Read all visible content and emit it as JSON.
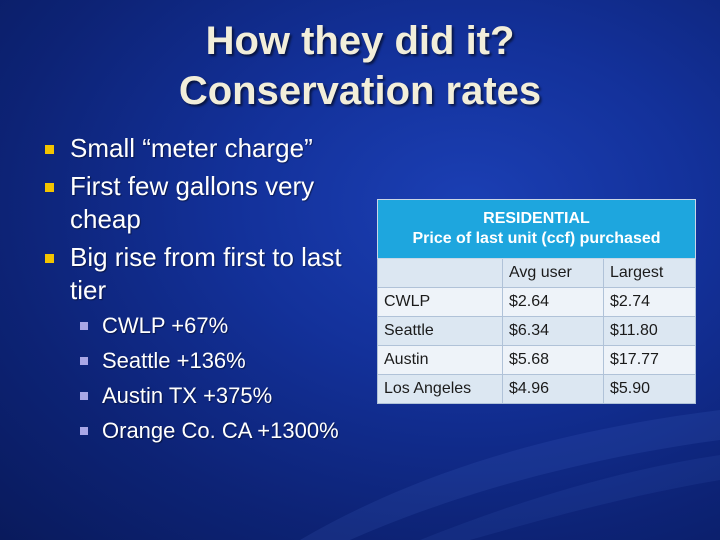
{
  "slide": {
    "title_line1": "How they did it?",
    "title_line2": "Conservation rates",
    "bullets": [
      {
        "text": "Small “meter charge”"
      },
      {
        "text": "First few gallons very cheap"
      },
      {
        "text": "Big rise from first to last tier",
        "sub": [
          "CWLP +67%",
          "Seattle +136%",
          "Austin TX +375%",
          "Orange Co. CA +1300%"
        ]
      }
    ],
    "colors": {
      "background": "#13319a",
      "title": "#f2eeda",
      "bullet_marker": "#f3c400",
      "sub_bullet_marker": "#a9a7e6",
      "table_header": "#1ea6de"
    }
  },
  "table": {
    "header_line1": "RESIDENTIAL",
    "header_line2": "Price of last unit (ccf) purchased",
    "columns": [
      "",
      "Avg user",
      "Largest"
    ],
    "rows": [
      [
        "CWLP",
        "$2.64",
        "$2.74"
      ],
      [
        "Seattle",
        "$6.34",
        "$11.80"
      ],
      [
        "Austin",
        "$5.68",
        "$17.77"
      ],
      [
        "Los Angeles",
        "$4.96",
        "$5.90"
      ]
    ]
  }
}
